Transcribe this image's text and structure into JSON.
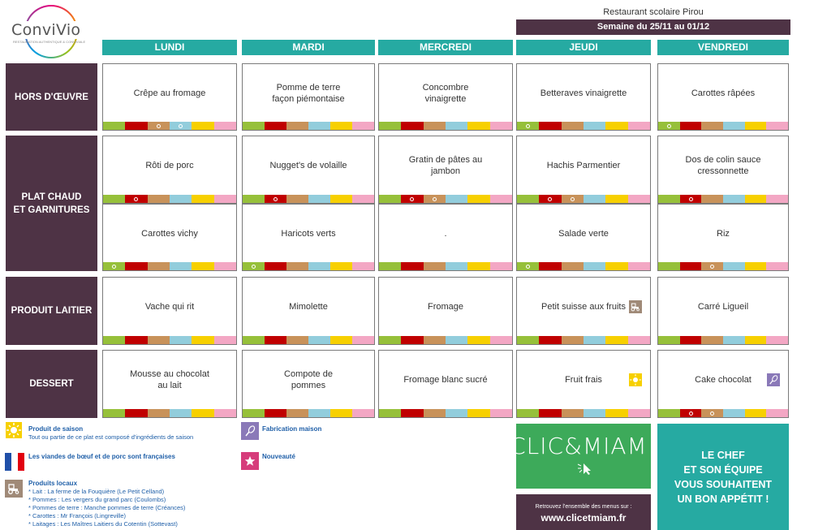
{
  "logo": {
    "text": "ConviVio",
    "tagline": "RESTAURATION AUTHENTIQUE & CONVIVIALE"
  },
  "header": {
    "restaurant": "Restaurant scolaire Pirou",
    "week": "Semaine du 25/11 au 01/12"
  },
  "days": [
    "LUNDI",
    "MARDI",
    "MERCREDI",
    "JEUDI",
    "VENDREDI"
  ],
  "rows": [
    {
      "label": "HORS D'ŒUVRE",
      "dishes": [
        "Crêpe au fromage",
        "Pomme de terre\nfaçon piémontaise",
        "Concombre\nvinaigrette",
        "Betteraves vinaigrette",
        "Carottes râpées"
      ]
    },
    {
      "label": "PLAT CHAUD\nET GARNITURES",
      "dishes": [
        "Rôti de porc",
        "Nugget's de volaille",
        "Gratin de pâtes au\njambon",
        "Hachis Parmentier",
        "Dos de colin sauce\ncressonnette"
      ]
    },
    {
      "label": "",
      "dishes": [
        "Carottes vichy",
        "Haricots verts",
        ".",
        "Salade verte",
        "Riz"
      ]
    },
    {
      "label": "PRODUIT LAITIER",
      "dishes": [
        "Vache qui rit",
        "Mimolette",
        "Fromage",
        "Petit suisse aux fruits",
        "Carré Ligueil"
      ]
    },
    {
      "label": "DESSERT",
      "dishes": [
        "Mousse au chocolat\nau lait",
        "Compote de\npommes",
        "Fromage blanc sucré",
        "Fruit frais",
        "Cake chocolat"
      ]
    }
  ],
  "strip_colors": [
    "#96c03a",
    "#c00000",
    "#c8925a",
    "#92cddc",
    "#f7d000",
    "#f3a7c4"
  ],
  "legend": {
    "saison_title": "Produit de saison",
    "saison_text": "Tout ou partie de ce plat est composé d'ingrédients de saison",
    "viandes": "Les viandes de bœuf et de porc sont françaises",
    "locaux_title": "Produits locaux",
    "locaux_items": [
      "* Lait : La ferme de la Fouquière (Le Petit Celland)",
      "* Pommes : Les vergers du grand parc (Coulombs)",
      "* Pommes de terre : Manche pommes de terre (Créances)",
      "* Carottes : Mr François (Lingreville)",
      "* Laitages : Les Maîtres Laitiers du Cotentin (Sottevast)"
    ],
    "maison": "Fabrication maison",
    "nouveaute": "Nouveauté"
  },
  "icons": {
    "saison": "sun-icon",
    "france": "french-flag-icon",
    "local": "tractor-icon",
    "maison": "whisk-icon",
    "nouveau": "star-icon"
  },
  "promo": {
    "clic": "CLIC&MIAM!",
    "retrouvez": "Retrouvez l'ensemble des menus sur :",
    "url": "www.clicetmiam.fr",
    "chef": "LE CHEF\nET SON ÉQUIPE\nVOUS SOUHAITENT\nUN BON APPÉTIT !"
  }
}
